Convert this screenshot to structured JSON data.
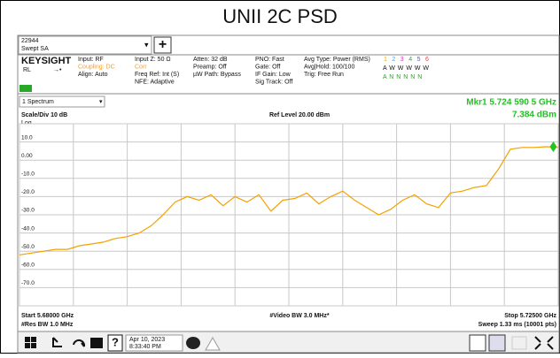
{
  "title": "UNII 2C PSD",
  "app": {
    "instance": "22944",
    "mode": "Swept SA",
    "add": "+",
    "brand": "KEYSIGHT",
    "rl": "RL",
    "settings": [
      [
        "Input: RF",
        "Coupling: DC",
        "Align: Auto"
      ],
      [
        "Input Z: 50 Ω",
        "Corr",
        "Freq Ref: Int (S)",
        "NFE: Adaptive"
      ],
      [
        "Atten: 32 dB",
        "Preamp: Off",
        "µW Path: Bypass"
      ],
      [
        "PNO: Fast",
        "Gate: Off",
        "IF Gain: Low",
        "Sig Track: Off"
      ],
      [
        "Avg Type: Power (RMS)",
        "Avg|Hold: 100/100",
        "Trig: Free Run"
      ]
    ],
    "traces": {
      "numbers": [
        "1",
        "2",
        "3",
        "4",
        "5",
        "6"
      ],
      "types": "A W W W W W",
      "detectors": "A N N N N N"
    }
  },
  "window": "1 Spectrum",
  "marker": {
    "label": "Mkr1  5.724 590 5 GHz",
    "value": "7.384 dBm"
  },
  "scale": "Scale/Div 10 dB",
  "ref_level": "Ref Level 20.00 dBm",
  "log": "Log",
  "footer": {
    "start": "Start 5.68000 GHz",
    "rbw": "#Res BW 1.0 MHz",
    "vbw": "#Video BW 3.0 MHz*",
    "stop": "Stop 5.72500 GHz",
    "sweep": "Sweep 1.33 ms (10001 pts)"
  },
  "taskbar": {
    "date": "Apr 10, 2023",
    "time": "8:33:40 PM"
  },
  "chart_data": {
    "type": "line",
    "color": "#f5a000",
    "grid": true,
    "x": [
      5.68,
      5.681,
      5.682,
      5.683,
      5.684,
      5.685,
      5.686,
      5.687,
      5.688,
      5.689,
      5.69,
      5.691,
      5.692,
      5.693,
      5.694,
      5.695,
      5.696,
      5.697,
      5.698,
      5.699,
      5.7,
      5.701,
      5.702,
      5.703,
      5.704,
      5.705,
      5.706,
      5.707,
      5.708,
      5.709,
      5.71,
      5.711,
      5.712,
      5.713,
      5.714,
      5.715,
      5.716,
      5.717,
      5.718,
      5.719,
      5.72,
      5.721,
      5.722,
      5.723,
      5.724,
      5.725
    ],
    "values": [
      -52,
      -51,
      -50,
      -49,
      -49,
      -47,
      -46,
      -45,
      -43,
      -42,
      -40,
      -36,
      -30,
      -23,
      -20,
      -22,
      -19,
      -25,
      -20,
      -23,
      -19,
      -28,
      -22,
      -21,
      -18,
      -24,
      -20,
      -17,
      -22,
      -26,
      -30,
      -27,
      -22,
      -19,
      -24,
      -26,
      -18,
      -17,
      -15,
      -14,
      -5,
      6,
      7,
      7,
      7.4,
      7
    ],
    "xlim": [
      5.68,
      5.725
    ],
    "xticks": [
      5.68,
      5.6845,
      5.689,
      5.6935,
      5.698,
      5.7025,
      5.707,
      5.7115,
      5.716,
      5.7205,
      5.725
    ],
    "ylim": [
      -80,
      20
    ],
    "yticks": [
      {
        "value": 20,
        "label": ""
      },
      {
        "value": 10,
        "label": "10.0"
      },
      {
        "value": 0,
        "label": "0.00"
      },
      {
        "value": -10,
        "label": "-10.0"
      },
      {
        "value": -20,
        "label": "-20.0"
      },
      {
        "value": -30,
        "label": "-30.0"
      },
      {
        "value": -40,
        "label": "-40.0"
      },
      {
        "value": -50,
        "label": "-50.0"
      },
      {
        "value": -60,
        "label": "-60.0"
      },
      {
        "value": -70,
        "label": "-70.0"
      },
      {
        "value": -80,
        "label": ""
      }
    ],
    "marker": {
      "x": 5.7245905,
      "y": 7.384,
      "color": "#22c322"
    }
  }
}
